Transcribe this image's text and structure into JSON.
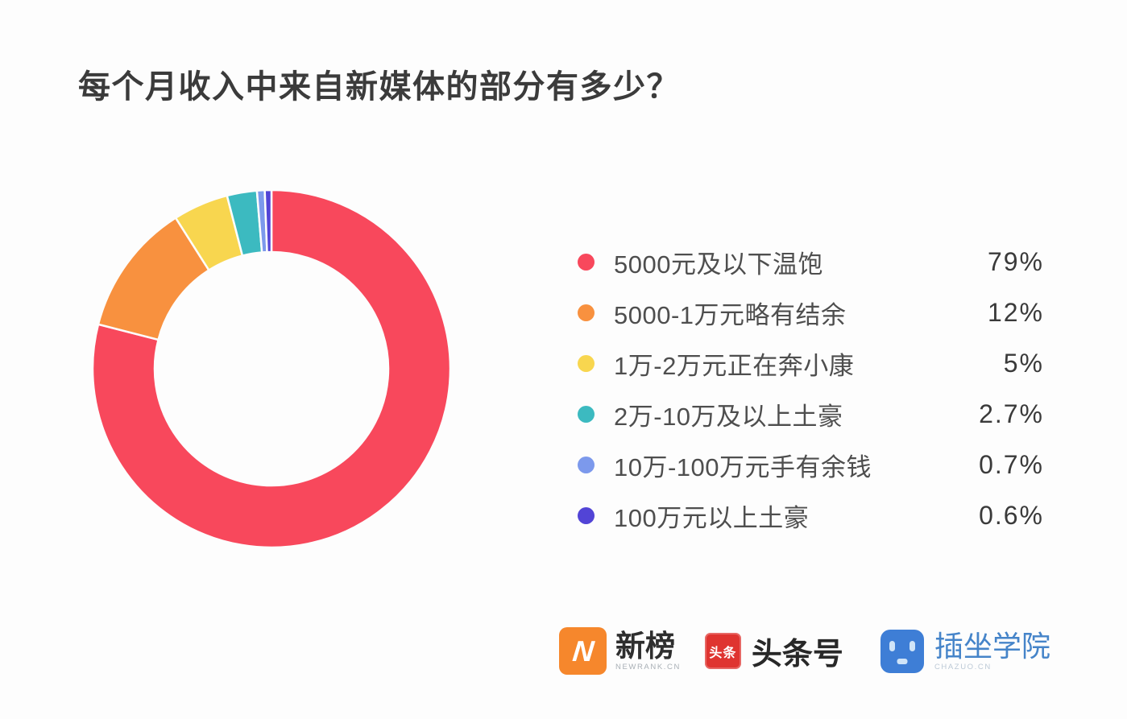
{
  "page": {
    "title": "每个月收入中来自新媒体的部分有多少？",
    "background": "#FDFDFD"
  },
  "chart_data": {
    "type": "pie",
    "subtype": "donut",
    "title": "每个月收入中来自新媒体的部分有多少？",
    "start_angle_deg": 0,
    "direction": "clockwise",
    "inner_radius_ratio": 0.655,
    "legend_position": "right",
    "slice_gap_color": "#FDFDFD",
    "items": [
      {
        "label": "5000元及以下温饱",
        "value": 79,
        "display": "79%",
        "color": "#F8485C"
      },
      {
        "label": "5000-1万元略有结余",
        "value": 12,
        "display": "12%",
        "color": "#F8913F"
      },
      {
        "label": "1万-2万元正在奔小康",
        "value": 5,
        "display": "5%",
        "color": "#F8D64F"
      },
      {
        "label": "2万-10万及以上土豪",
        "value": 2.7,
        "display": "2.7%",
        "color": "#3CBAC0"
      },
      {
        "label": "10万-100万元手有余钱",
        "value": 0.7,
        "display": "0.7%",
        "color": "#7C99EC"
      },
      {
        "label": "100万元以上土豪",
        "value": 0.6,
        "display": "0.6%",
        "color": "#5244D6"
      }
    ]
  },
  "footer": {
    "logos": [
      {
        "id": "newrank",
        "title": "新榜",
        "subtitle": "NEWRANK.CN",
        "icon_glyph": "N",
        "icon_color": "#F6872C",
        "title_color": "#2E2E2E"
      },
      {
        "id": "toutiao",
        "title": "头条号",
        "subtitle": "",
        "icon_glyph": "头条",
        "icon_color": "#DF3430",
        "title_color": "#282828"
      },
      {
        "id": "chazuo",
        "title": "插坐学院",
        "subtitle": "CHAZUO.CN",
        "icon_glyph": "",
        "icon_color": "#3E7ED6",
        "title_color": "#4584C9"
      }
    ]
  }
}
